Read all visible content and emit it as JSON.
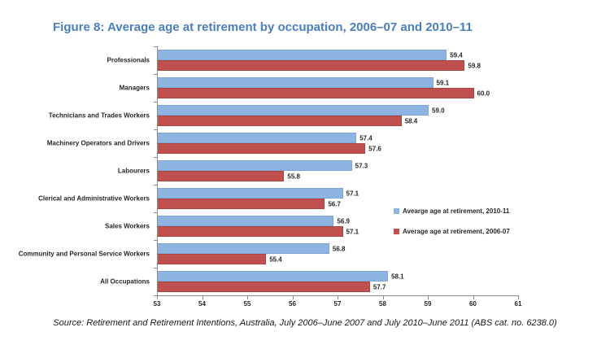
{
  "title": "Figure 8: Average age at retirement by occupation, 2006–07 and 2010–11",
  "source": "Source: Retirement and Retirement Intentions, Australia, July 2006–June 2007 and July 2010–June 2011 (ABS cat. no. 6238.0)",
  "colors": {
    "title": "#4a7ebb",
    "series_2010_11": "#8eb4e2",
    "series_2006_07": "#c0504d",
    "axis": "#8c8c8c",
    "label_text": "#262626"
  },
  "chart_data": {
    "type": "bar",
    "orientation": "horizontal",
    "title": "Figure 8: Average age at retirement by occupation, 2006–07 and 2010–11",
    "xlabel": "",
    "ylabel": "",
    "xlim": [
      53,
      61
    ],
    "xticks": [
      53,
      54,
      55,
      56,
      57,
      58,
      59,
      60,
      61
    ],
    "grid": false,
    "data_labels": true,
    "legend_position": "right-inside",
    "categories": [
      "Professionals",
      "Managers",
      "Technicians and Trades Workers",
      "Machinery Operators and Drivers",
      "Labourers",
      "Clerical and Administrative Workers",
      "Sales Workers",
      "Community and Personal Service Workers",
      "All Occupations"
    ],
    "series": [
      {
        "name": "Avearge age at retirement, 2010-11",
        "color": "#8eb4e2",
        "values": [
          59.4,
          59.1,
          59.0,
          57.4,
          57.3,
          57.1,
          56.9,
          56.8,
          58.1
        ]
      },
      {
        "name": "Average age at retirement, 2006-07",
        "color": "#c0504d",
        "values": [
          59.8,
          60.0,
          58.4,
          57.6,
          55.8,
          56.7,
          57.1,
          55.4,
          57.7
        ]
      }
    ]
  }
}
